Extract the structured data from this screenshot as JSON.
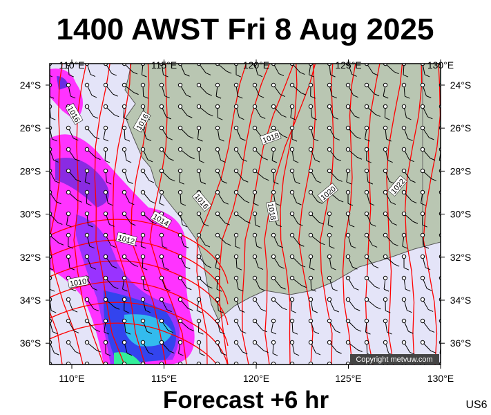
{
  "header": {
    "title": "1400 AWST Fri 8 Aug 2025"
  },
  "map": {
    "lon_labels": [
      "110°E",
      "115°E",
      "120°E",
      "125°E",
      "130°E"
    ],
    "lat_labels": [
      "24°S",
      "26°S",
      "28°S",
      "30°S",
      "32°S",
      "34°S",
      "36°S"
    ],
    "isobar_labels": [
      "1016",
      "1016",
      "1018",
      "1020",
      "1022",
      "1016",
      "1018",
      "1014",
      "1012",
      "1010"
    ],
    "copyright": "Copyright metvuw.com"
  },
  "footer": {
    "caption": "Forecast +6 hr",
    "code": "US6"
  }
}
